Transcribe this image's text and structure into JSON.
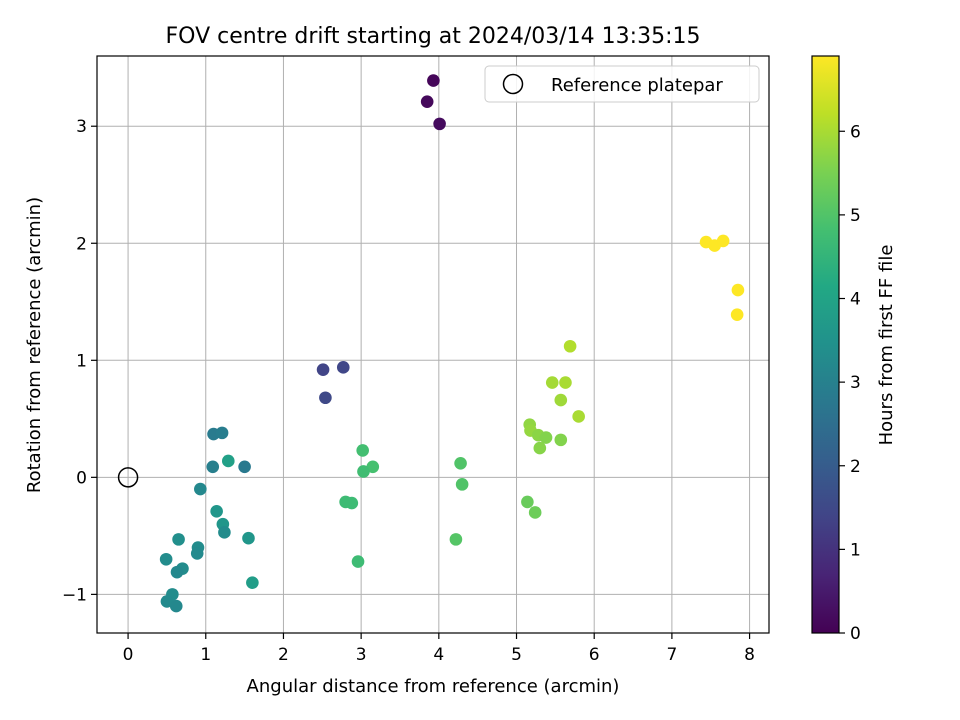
{
  "chart_data": {
    "type": "scatter",
    "title": "FOV centre drift starting at 2024/03/14 13:35:15",
    "xlabel": "Angular distance from reference (arcmin)",
    "ylabel": "Rotation from reference (arcmin)",
    "colorbar_label": "Hours from first FF file",
    "xlim": [
      -0.4,
      8.25
    ],
    "ylim": [
      -1.33,
      3.6
    ],
    "clim": [
      0,
      6.9
    ],
    "colormap": "viridis",
    "x_ticks": [
      0,
      1,
      2,
      3,
      4,
      5,
      6,
      7,
      8
    ],
    "x_tick_labels": [
      "0",
      "1",
      "2",
      "3",
      "4",
      "5",
      "6",
      "7",
      "8"
    ],
    "y_ticks": [
      -1,
      0,
      1,
      2,
      3
    ],
    "y_tick_labels": [
      "−1",
      "0",
      "1",
      "2",
      "3"
    ],
    "c_ticks": [
      0,
      1,
      2,
      3,
      4,
      5,
      6
    ],
    "c_tick_labels": [
      "0",
      "1",
      "2",
      "3",
      "4",
      "5",
      "6"
    ],
    "grid": true,
    "legend": {
      "position": "top-right",
      "label": "Reference platepar"
    },
    "reference_point": {
      "x": 0,
      "y": 0
    },
    "points": [
      {
        "x": 3.93,
        "y": 3.39,
        "t": 0.1
      },
      {
        "x": 3.85,
        "y": 3.21,
        "t": 0.15
      },
      {
        "x": 4.01,
        "y": 3.02,
        "t": 0.2
      },
      {
        "x": 2.51,
        "y": 0.92,
        "t": 1.4
      },
      {
        "x": 2.77,
        "y": 0.94,
        "t": 1.45
      },
      {
        "x": 2.54,
        "y": 0.68,
        "t": 1.5
      },
      {
        "x": 1.1,
        "y": 0.37,
        "t": 2.85
      },
      {
        "x": 1.21,
        "y": 0.38,
        "t": 2.9
      },
      {
        "x": 1.09,
        "y": 0.09,
        "t": 2.95
      },
      {
        "x": 1.5,
        "y": 0.09,
        "t": 2.8
      },
      {
        "x": 0.93,
        "y": -0.1,
        "t": 3.2
      },
      {
        "x": 1.29,
        "y": 0.14,
        "t": 3.9
      },
      {
        "x": 1.14,
        "y": -0.29,
        "t": 3.6
      },
      {
        "x": 1.22,
        "y": -0.4,
        "t": 3.6
      },
      {
        "x": 1.24,
        "y": -0.47,
        "t": 3.3
      },
      {
        "x": 1.55,
        "y": -0.52,
        "t": 3.6
      },
      {
        "x": 1.6,
        "y": -0.9,
        "t": 3.8
      },
      {
        "x": 0.65,
        "y": -0.53,
        "t": 3.4
      },
      {
        "x": 0.9,
        "y": -0.6,
        "t": 3.3
      },
      {
        "x": 0.89,
        "y": -0.65,
        "t": 3.25
      },
      {
        "x": 0.7,
        "y": -0.78,
        "t": 3.3
      },
      {
        "x": 0.63,
        "y": -0.81,
        "t": 3.2
      },
      {
        "x": 0.49,
        "y": -0.7,
        "t": 3.3
      },
      {
        "x": 0.57,
        "y": -1.0,
        "t": 3.3
      },
      {
        "x": 0.5,
        "y": -1.06,
        "t": 3.25
      },
      {
        "x": 0.62,
        "y": -1.1,
        "t": 3.2
      },
      {
        "x": 3.02,
        "y": 0.23,
        "t": 4.8
      },
      {
        "x": 3.15,
        "y": 0.09,
        "t": 4.85
      },
      {
        "x": 3.03,
        "y": 0.05,
        "t": 4.75
      },
      {
        "x": 2.8,
        "y": -0.21,
        "t": 4.7
      },
      {
        "x": 2.88,
        "y": -0.22,
        "t": 4.7
      },
      {
        "x": 2.96,
        "y": -0.72,
        "t": 4.7
      },
      {
        "x": 4.28,
        "y": 0.12,
        "t": 5.0
      },
      {
        "x": 4.3,
        "y": -0.06,
        "t": 5.0
      },
      {
        "x": 4.22,
        "y": -0.53,
        "t": 5.05
      },
      {
        "x": 5.14,
        "y": -0.21,
        "t": 5.3
      },
      {
        "x": 5.24,
        "y": -0.3,
        "t": 5.35
      },
      {
        "x": 5.17,
        "y": 0.45,
        "t": 5.75
      },
      {
        "x": 5.18,
        "y": 0.4,
        "t": 5.8
      },
      {
        "x": 5.28,
        "y": 0.36,
        "t": 5.7
      },
      {
        "x": 5.38,
        "y": 0.34,
        "t": 5.6
      },
      {
        "x": 5.3,
        "y": 0.25,
        "t": 5.65
      },
      {
        "x": 5.57,
        "y": 0.32,
        "t": 5.6
      },
      {
        "x": 5.57,
        "y": 0.66,
        "t": 5.9
      },
      {
        "x": 5.46,
        "y": 0.81,
        "t": 5.95
      },
      {
        "x": 5.63,
        "y": 0.81,
        "t": 6.0
      },
      {
        "x": 5.8,
        "y": 0.52,
        "t": 6.0
      },
      {
        "x": 5.69,
        "y": 1.12,
        "t": 6.1
      },
      {
        "x": 7.44,
        "y": 2.01,
        "t": 6.9
      },
      {
        "x": 7.55,
        "y": 1.98,
        "t": 6.9
      },
      {
        "x": 7.66,
        "y": 2.02,
        "t": 6.9
      },
      {
        "x": 7.85,
        "y": 1.6,
        "t": 6.9
      },
      {
        "x": 7.84,
        "y": 1.39,
        "t": 6.9
      }
    ]
  }
}
